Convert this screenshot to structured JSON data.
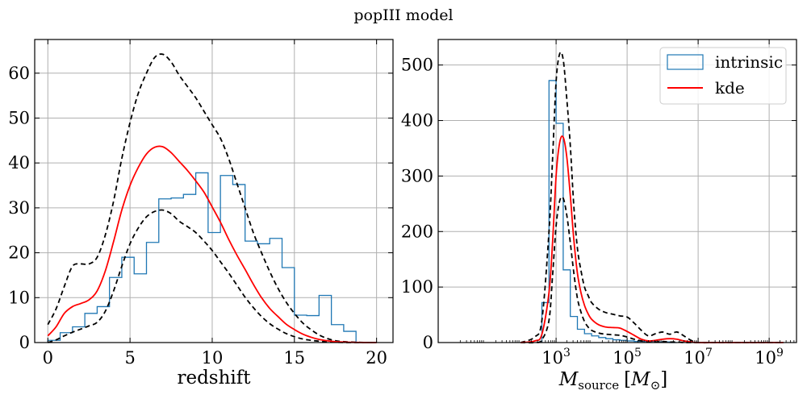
{
  "figure": {
    "title": "popIII model"
  },
  "colors": {
    "intrinsic": "#1f77b4",
    "kde": "#ff0000",
    "bounds": "#000000",
    "grid": "#b0b0b0"
  },
  "chart_data": [
    {
      "type": "histogram",
      "xlabel": "redshift",
      "ylabel": "",
      "xlim": [
        -0.8,
        21
      ],
      "ylim": [
        0,
        67.5
      ],
      "xticks": [
        0,
        5,
        10,
        15,
        20
      ],
      "yticks": [
        0,
        10,
        20,
        30,
        40,
        50,
        60
      ],
      "grid": true,
      "histogram": {
        "name": "intrinsic",
        "edges": [
          0,
          0.75,
          1.5,
          2.25,
          3,
          3.75,
          4.5,
          5.25,
          6,
          6.75,
          7.5,
          8.25,
          9,
          9.75,
          10.5,
          11.25,
          12,
          12.75,
          13.5,
          14.25,
          15,
          15.75,
          16.5,
          17.25,
          18,
          18.75,
          19.5
        ],
        "counts": [
          0.5,
          2.2,
          3.5,
          6.5,
          8,
          14.5,
          19,
          15.3,
          22.3,
          32,
          32.2,
          33,
          37.8,
          24.5,
          37.2,
          35.2,
          22.6,
          22,
          23.2,
          16.7,
          6.1,
          6,
          10.5,
          4,
          2.5,
          0
        ]
      },
      "series": [
        {
          "name": "kde",
          "style": "solid",
          "x": [
            0,
            0.5,
            1,
            1.5,
            2,
            2.5,
            3,
            3.5,
            4,
            4.5,
            5,
            5.5,
            6,
            6.5,
            7,
            7.5,
            8,
            8.5,
            9,
            9.5,
            10,
            10.5,
            11,
            11.5,
            12,
            12.5,
            13,
            13.5,
            14,
            14.5,
            15,
            15.5,
            16,
            16.5,
            17,
            17.5,
            18,
            18.5,
            19,
            19.5,
            20
          ],
          "y": [
            1.5,
            3.5,
            6.5,
            8,
            8.7,
            9.5,
            11.5,
            16,
            22.5,
            29.5,
            35,
            39,
            42,
            43.5,
            43.6,
            42.3,
            40.3,
            38.3,
            36,
            33.5,
            30.2,
            26.8,
            23,
            19.5,
            16.3,
            13,
            10,
            7.6,
            5.8,
            4.1,
            2.9,
            1.9,
            1.2,
            0.7,
            0.4,
            0.2,
            0.1,
            0.05,
            0.02,
            0,
            0
          ]
        },
        {
          "name": "",
          "style": "dashed",
          "x": [
            0,
            0.5,
            1,
            1.5,
            2,
            2.5,
            3,
            3.5,
            4,
            4.5,
            5,
            5.5,
            6,
            6.5,
            7,
            7.5,
            8,
            8.5,
            9,
            9.5,
            10,
            10.5,
            11,
            11.5,
            12,
            12.5,
            13,
            13.5,
            14,
            14.5,
            15,
            15.5,
            16,
            16.5,
            17,
            17.5,
            18,
            18.5,
            19,
            19.5,
            20
          ],
          "y": [
            4,
            7.5,
            12.5,
            17,
            17.5,
            17.5,
            19,
            24,
            31.5,
            41,
            49,
            55.5,
            60,
            63.5,
            64.2,
            62.5,
            59.5,
            57,
            54.5,
            51.5,
            48.5,
            45.5,
            41,
            35.5,
            30,
            24.5,
            20,
            15.8,
            12.1,
            9,
            6.5,
            4.4,
            2.9,
            1.7,
            0.9,
            0.4,
            0.2,
            0.1,
            0.05,
            0,
            0
          ]
        },
        {
          "name": "",
          "style": "dashed",
          "x": [
            0,
            0.5,
            1,
            1.5,
            2,
            2.5,
            3,
            3.5,
            4,
            4.5,
            5,
            5.5,
            6,
            6.5,
            7,
            7.5,
            8,
            8.5,
            9,
            9.5,
            10,
            10.5,
            11,
            11.5,
            12,
            12.5,
            13,
            13.5,
            14,
            14.5,
            15,
            15.5,
            16,
            16.5,
            17,
            17.5,
            18,
            18.5,
            19,
            19.5,
            20
          ],
          "y": [
            0,
            0.6,
            1.5,
            2.3,
            3,
            3.7,
            4.5,
            7,
            11.5,
            17,
            22,
            25.5,
            28,
            29.2,
            29.5,
            28.7,
            27,
            25.8,
            24.5,
            22.6,
            20.5,
            18,
            15.5,
            12.8,
            10.1,
            7.8,
            5.8,
            4.2,
            3,
            2,
            1.3,
            0.8,
            0.5,
            0.3,
            0.15,
            0.06,
            0.02,
            0,
            0,
            0,
            0
          ]
        }
      ]
    },
    {
      "type": "histogram",
      "xlabel": "M_source [M_⊙]",
      "ylabel": "",
      "xscale": "log",
      "xlim": [
        -0.32,
        9.77
      ],
      "ylim": [
        0,
        546
      ],
      "xticks": [
        3,
        5,
        7,
        9
      ],
      "xtick_labels": [
        "10^3",
        "10^5",
        "10^7",
        "10^9"
      ],
      "yticks": [
        0,
        100,
        200,
        300,
        400,
        500
      ],
      "grid": true,
      "legend": "top-right",
      "histogram": {
        "name": "intrinsic",
        "edges": [
          2.6,
          2.8,
          3.0,
          3.2,
          3.4,
          3.6,
          3.8,
          4.0,
          4.2,
          4.4,
          4.6,
          4.8,
          5.0,
          5.2,
          5.4,
          5.6,
          5.8,
          6.0,
          6.2,
          6.4
        ],
        "counts": [
          72,
          472,
          395,
          131,
          47,
          24,
          16,
          12,
          9,
          7,
          5,
          4,
          3,
          2,
          2,
          2,
          1,
          1,
          0
        ]
      },
      "series": [
        {
          "name": "kde",
          "style": "solid",
          "x": [
            2.0,
            2.4,
            2.6,
            2.8,
            2.9,
            3.0,
            3.1,
            3.2,
            3.3,
            3.4,
            3.5,
            3.6,
            3.7,
            3.8,
            3.9,
            4.0,
            4.2,
            4.4,
            4.6,
            4.8,
            5.0,
            5.2,
            5.4,
            5.6,
            5.8,
            6.0,
            6.2,
            6.4,
            6.6,
            6.8,
            7.0,
            7.5,
            8.0,
            8.5,
            9.0,
            9.4
          ],
          "y": [
            0,
            3,
            15,
            90,
            180,
            300,
            360,
            370,
            335,
            265,
            185,
            125,
            90,
            67,
            52,
            42,
            32,
            28,
            27,
            26,
            20,
            13,
            6,
            3,
            4,
            6,
            7,
            6,
            3,
            1,
            0,
            0,
            0,
            0,
            0,
            0
          ]
        },
        {
          "name": "",
          "style": "dashed",
          "x": [
            2.0,
            2.4,
            2.6,
            2.8,
            2.9,
            3.0,
            3.1,
            3.2,
            3.3,
            3.4,
            3.5,
            3.6,
            3.7,
            3.8,
            3.9,
            4.0,
            4.2,
            4.4,
            4.6,
            4.8,
            5.0,
            5.2,
            5.4,
            5.6,
            5.8,
            6.0,
            6.2,
            6.4,
            6.6,
            6.8,
            7.0,
            7.5,
            8.0,
            8.5,
            9.0,
            9.4
          ],
          "y": [
            0,
            10,
            40,
            200,
            330,
            470,
            520,
            510,
            440,
            355,
            245,
            170,
            130,
            100,
            85,
            72,
            60,
            54,
            51,
            48,
            46,
            35,
            22,
            12,
            16,
            19,
            15,
            19,
            12,
            4,
            0,
            0,
            0,
            0,
            0,
            0
          ]
        },
        {
          "name": "",
          "style": "dashed",
          "x": [
            2.0,
            2.4,
            2.6,
            2.8,
            2.9,
            3.0,
            3.1,
            3.2,
            3.3,
            3.4,
            3.5,
            3.6,
            3.7,
            3.8,
            3.9,
            4.0,
            4.2,
            4.4,
            4.6,
            4.8,
            5.0,
            5.2,
            5.4,
            5.6,
            5.8,
            6.0,
            6.2,
            6.4,
            6.6,
            6.8,
            7.0,
            7.5,
            8.0,
            8.5,
            9.0,
            9.4
          ],
          "y": [
            0,
            0,
            5,
            40,
            120,
            210,
            255,
            260,
            230,
            180,
            125,
            80,
            55,
            38,
            28,
            22,
            17,
            15,
            14,
            13,
            10,
            6,
            3,
            1,
            1,
            2,
            1,
            1,
            0,
            0,
            0,
            0,
            0,
            0,
            0,
            0
          ]
        }
      ]
    }
  ]
}
